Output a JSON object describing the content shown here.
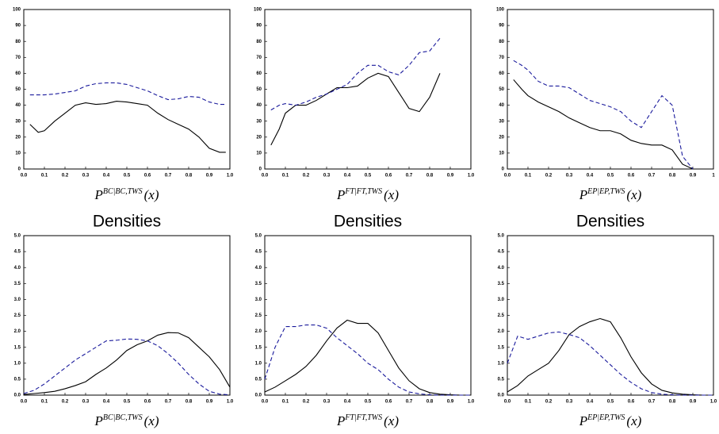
{
  "chart_data": [
    {
      "type": "line",
      "xlim": [
        0,
        1
      ],
      "ylim": [
        0,
        100
      ],
      "xticks": [
        {
          "value": 0,
          "label": "0.0"
        },
        0.1,
        0.2,
        0.3,
        0.4,
        0.5,
        0.6,
        0.7,
        0.8,
        0.9,
        {
          "value": 1,
          "label": "1.0"
        }
      ],
      "yticks": [
        0,
        10,
        20,
        30,
        40,
        50,
        60,
        70,
        80,
        90,
        100
      ],
      "xlabel": {
        "base": "P",
        "sup": "BC|BC,TWS",
        "arg": "(x)"
      },
      "x": [
        0.03,
        0.07,
        0.1,
        0.15,
        0.2,
        0.25,
        0.3,
        0.35,
        0.4,
        0.45,
        0.5,
        0.55,
        0.6,
        0.65,
        0.7,
        0.75,
        0.8,
        0.85,
        0.9,
        0.95,
        0.98
      ],
      "series": [
        {
          "color": "#000000",
          "dash": "solid",
          "values": [
            28,
            23,
            24,
            30,
            35,
            40,
            41.5,
            40.5,
            41,
            42.5,
            42,
            41,
            40,
            35,
            31,
            28,
            25,
            20,
            13,
            10.5,
            10.5
          ]
        },
        {
          "color": "#1a1a9c",
          "dash": "dashed",
          "values": [
            46.5,
            46.5,
            46.5,
            47,
            48,
            49,
            52,
            53.5,
            54,
            54,
            53,
            51,
            49,
            46,
            43.5,
            44,
            45.5,
            45,
            42,
            40.5,
            40.5
          ]
        }
      ]
    },
    {
      "type": "line",
      "xlim": [
        0,
        1
      ],
      "ylim": [
        0,
        100
      ],
      "xticks": [
        {
          "value": 0,
          "label": "0.0"
        },
        0.1,
        0.2,
        0.3,
        0.4,
        0.5,
        0.6,
        0.7,
        0.8,
        0.9,
        {
          "value": 1,
          "label": "1.0"
        }
      ],
      "yticks": [
        0,
        10,
        20,
        30,
        40,
        50,
        60,
        70,
        80,
        90,
        100
      ],
      "xlabel": {
        "base": "P",
        "sup": "FT|FT,TWS",
        "arg": "(x)"
      },
      "x": [
        0.03,
        0.07,
        0.1,
        0.15,
        0.2,
        0.25,
        0.3,
        0.35,
        0.4,
        0.45,
        0.5,
        0.55,
        0.6,
        0.65,
        0.7,
        0.75,
        0.8,
        0.85
      ],
      "series": [
        {
          "color": "#000000",
          "dash": "solid",
          "values": [
            15,
            25,
            35,
            40,
            40,
            43,
            47,
            51,
            51,
            52,
            57,
            60,
            58,
            48,
            38,
            36,
            45,
            60
          ]
        },
        {
          "color": "#1a1a9c",
          "dash": "dashed",
          "values": [
            37,
            40,
            41,
            40,
            42,
            45,
            47,
            50,
            53,
            60,
            65,
            65,
            61,
            59,
            65,
            73,
            74,
            82
          ]
        }
      ]
    },
    {
      "type": "line",
      "xlim": [
        0,
        1
      ],
      "ylim": [
        0,
        100
      ],
      "xticks": [
        {
          "value": 0,
          "label": "0.0"
        },
        0.1,
        0.2,
        0.3,
        0.4,
        0.5,
        0.6,
        0.7,
        0.8,
        0.9,
        1
      ],
      "yticks": [
        0,
        10,
        20,
        30,
        40,
        50,
        60,
        70,
        80,
        90,
        100
      ],
      "xlabel": {
        "base": "P",
        "sup": "EP|EP,TWS",
        "arg": "(x)"
      },
      "x": [
        0.03,
        0.07,
        0.1,
        0.15,
        0.2,
        0.25,
        0.3,
        0.35,
        0.4,
        0.45,
        0.5,
        0.55,
        0.6,
        0.65,
        0.7,
        0.75,
        0.8,
        0.85,
        0.9
      ],
      "series": [
        {
          "color": "#000000",
          "dash": "solid",
          "values": [
            56,
            50,
            46,
            42,
            39,
            36,
            32,
            29,
            26,
            24,
            24,
            22,
            18,
            16,
            15,
            15,
            12,
            3,
            0
          ]
        },
        {
          "color": "#1a1a9c",
          "dash": "dashed",
          "values": [
            68,
            65,
            62,
            55,
            52,
            52,
            51,
            47,
            43,
            41,
            39,
            36,
            30,
            26,
            36,
            46,
            40,
            8,
            0
          ]
        }
      ]
    },
    {
      "type": "line",
      "title": "Densities",
      "xlim": [
        0,
        1
      ],
      "ylim": [
        0,
        5
      ],
      "xticks": [
        {
          "value": 0,
          "label": "0.0"
        },
        0.1,
        0.2,
        0.3,
        0.4,
        0.5,
        0.6,
        0.7,
        0.8,
        0.9,
        {
          "value": 1,
          "label": "1.0"
        }
      ],
      "yticks": [
        {
          "value": 0,
          "label": "0.0"
        },
        0.5,
        {
          "value": 1,
          "label": "1.0"
        },
        1.5,
        {
          "value": 2,
          "label": "2.0"
        },
        2.5,
        {
          "value": 3,
          "label": "3.0"
        },
        3.5,
        {
          "value": 4,
          "label": "4.0"
        },
        4.5,
        {
          "value": 5,
          "label": "5.0"
        }
      ],
      "xlabel": {
        "base": "P",
        "sup": "BC|BC,TWS",
        "arg": "(x)"
      },
      "x": [
        0,
        0.05,
        0.1,
        0.15,
        0.2,
        0.25,
        0.3,
        0.35,
        0.4,
        0.45,
        0.5,
        0.55,
        0.6,
        0.65,
        0.7,
        0.75,
        0.8,
        0.85,
        0.9,
        0.95,
        1
      ],
      "series": [
        {
          "color": "#000000",
          "dash": "solid",
          "values": [
            0.02,
            0.05,
            0.08,
            0.12,
            0.2,
            0.3,
            0.42,
            0.65,
            0.85,
            1.1,
            1.4,
            1.58,
            1.7,
            1.88,
            1.96,
            1.95,
            1.8,
            1.5,
            1.2,
            0.8,
            0.25
          ]
        },
        {
          "color": "#1a1a9c",
          "dash": "dashed",
          "values": [
            0.05,
            0.15,
            0.35,
            0.6,
            0.85,
            1.1,
            1.3,
            1.5,
            1.7,
            1.72,
            1.76,
            1.75,
            1.7,
            1.55,
            1.3,
            1,
            0.65,
            0.35,
            0.12,
            0.03,
            0.01
          ]
        }
      ]
    },
    {
      "type": "line",
      "title": "Densities",
      "xlim": [
        0,
        1
      ],
      "ylim": [
        0,
        5
      ],
      "xticks": [
        {
          "value": 0,
          "label": "0.0"
        },
        0.1,
        0.2,
        0.3,
        0.4,
        0.5,
        0.6,
        0.7,
        0.8,
        0.9,
        {
          "value": 1,
          "label": "1.0"
        }
      ],
      "yticks": [
        {
          "value": 0,
          "label": "0.0"
        },
        0.5,
        {
          "value": 1,
          "label": "1.0"
        },
        1.5,
        {
          "value": 2,
          "label": "2.0"
        },
        2.5,
        {
          "value": 3,
          "label": "3.0"
        },
        3.5,
        {
          "value": 4,
          "label": "4.0"
        },
        4.5,
        {
          "value": 5,
          "label": "5.0"
        }
      ],
      "xlabel": {
        "base": "P",
        "sup": "FT|FT,TWS",
        "arg": "(x)"
      },
      "x": [
        0,
        0.05,
        0.1,
        0.15,
        0.2,
        0.25,
        0.3,
        0.35,
        0.4,
        0.45,
        0.5,
        0.55,
        0.6,
        0.65,
        0.7,
        0.75,
        0.8,
        0.85,
        0.9,
        0.95,
        1
      ],
      "series": [
        {
          "color": "#000000",
          "dash": "solid",
          "values": [
            0.1,
            0.25,
            0.45,
            0.65,
            0.9,
            1.25,
            1.7,
            2.1,
            2.35,
            2.25,
            2.25,
            1.95,
            1.4,
            0.85,
            0.45,
            0.2,
            0.08,
            0.03,
            0.01,
            0,
            0
          ]
        },
        {
          "color": "#1a1a9c",
          "dash": "dashed",
          "values": [
            0.5,
            1.5,
            2.15,
            2.15,
            2.2,
            2.2,
            2.1,
            1.8,
            1.55,
            1.3,
            1,
            0.8,
            0.5,
            0.25,
            0.1,
            0.04,
            0.01,
            0,
            0,
            0,
            0
          ]
        }
      ]
    },
    {
      "type": "line",
      "title": "Densities",
      "xlim": [
        0,
        1
      ],
      "ylim": [
        0,
        5
      ],
      "xticks": [
        {
          "value": 0,
          "label": "0.0"
        },
        0.1,
        0.2,
        0.3,
        0.4,
        0.5,
        0.6,
        0.7,
        0.8,
        0.9,
        {
          "value": 1,
          "label": "1.0"
        }
      ],
      "yticks": [
        {
          "value": 0,
          "label": "0.0"
        },
        0.5,
        {
          "value": 1,
          "label": "1.0"
        },
        1.5,
        {
          "value": 2,
          "label": "2.0"
        },
        2.5,
        {
          "value": 3,
          "label": "3.0"
        },
        3.5,
        {
          "value": 4,
          "label": "4.0"
        },
        4.5,
        {
          "value": 5,
          "label": "5.0"
        }
      ],
      "xlabel": {
        "base": "P",
        "sup": "EP|EP,TWS",
        "arg": "(x)"
      },
      "x": [
        0,
        0.05,
        0.1,
        0.15,
        0.2,
        0.25,
        0.3,
        0.35,
        0.4,
        0.45,
        0.5,
        0.55,
        0.6,
        0.65,
        0.7,
        0.75,
        0.8,
        0.85,
        0.9,
        0.95,
        1
      ],
      "series": [
        {
          "color": "#000000",
          "dash": "solid",
          "values": [
            0.1,
            0.3,
            0.6,
            0.8,
            1,
            1.4,
            1.9,
            2.15,
            2.3,
            2.4,
            2.3,
            1.8,
            1.2,
            0.7,
            0.35,
            0.15,
            0.07,
            0.03,
            0.01,
            0,
            0
          ]
        },
        {
          "color": "#1a1a9c",
          "dash": "dashed",
          "values": [
            1,
            1.85,
            1.75,
            1.85,
            1.95,
            1.98,
            1.9,
            1.8,
            1.55,
            1.25,
            0.95,
            0.65,
            0.4,
            0.2,
            0.08,
            0.03,
            0.01,
            0,
            0,
            0,
            0
          ]
        }
      ]
    }
  ]
}
